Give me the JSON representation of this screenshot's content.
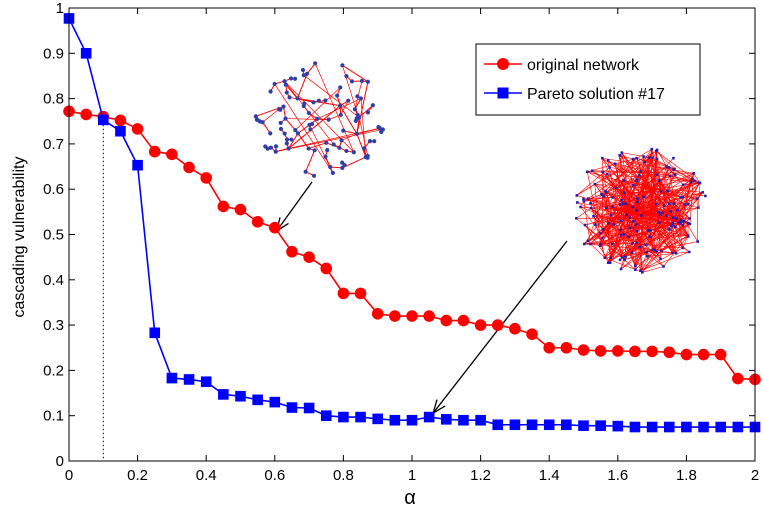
{
  "chart_data": {
    "type": "line",
    "xlabel": "α",
    "ylabel": "cascading vulnerability",
    "xlim": [
      0,
      2
    ],
    "ylim": [
      0,
      1
    ],
    "xticks": [
      0,
      0.2,
      0.4,
      0.6,
      0.8,
      1,
      1.2,
      1.4,
      1.6,
      1.8,
      2
    ],
    "yticks": [
      0,
      0.1,
      0.2,
      0.3,
      0.4,
      0.5,
      0.6,
      0.7,
      0.8,
      0.9,
      1
    ],
    "xtick_labels": [
      "0",
      "0.2",
      "0.4",
      "0.6",
      "0.8",
      "1",
      "1.2",
      "1.4",
      "1.6",
      "1.8",
      "2"
    ],
    "ytick_labels": [
      "0",
      "0.1",
      "0.2",
      "0.3",
      "0.4",
      "0.5",
      "0.6",
      "0.7",
      "0.8",
      "0.9",
      "1"
    ],
    "grid": false,
    "legend_position": "top-right",
    "reference_line_x": 0.1,
    "x": [
      0,
      0.05,
      0.1,
      0.15,
      0.2,
      0.25,
      0.3,
      0.35,
      0.4,
      0.45,
      0.5,
      0.55,
      0.6,
      0.65,
      0.7,
      0.75,
      0.8,
      0.85,
      0.9,
      0.95,
      1,
      1.05,
      1.1,
      1.15,
      1.2,
      1.25,
      1.3,
      1.35,
      1.4,
      1.45,
      1.5,
      1.55,
      1.6,
      1.65,
      1.7,
      1.75,
      1.8,
      1.85,
      1.9,
      1.95,
      2
    ],
    "series": [
      {
        "name": "original network",
        "color": "#ff0000",
        "marker": "circle",
        "values": [
          0.772,
          0.765,
          0.76,
          0.752,
          0.733,
          0.683,
          0.677,
          0.648,
          0.625,
          0.562,
          0.555,
          0.528,
          0.515,
          0.462,
          0.45,
          0.425,
          0.37,
          0.37,
          0.325,
          0.32,
          0.32,
          0.32,
          0.31,
          0.31,
          0.3,
          0.3,
          0.292,
          0.28,
          0.25,
          0.25,
          0.245,
          0.243,
          0.243,
          0.242,
          0.242,
          0.24,
          0.235,
          0.235,
          0.235,
          0.182,
          0.18
        ]
      },
      {
        "name": "Pareto solution #17",
        "color": "#0000ff",
        "marker": "square",
        "values": [
          0.977,
          0.9,
          0.753,
          0.728,
          0.653,
          0.283,
          0.183,
          0.18,
          0.175,
          0.147,
          0.143,
          0.135,
          0.13,
          0.118,
          0.117,
          0.1,
          0.097,
          0.097,
          0.093,
          0.09,
          0.09,
          0.097,
          0.092,
          0.09,
          0.09,
          0.08,
          0.08,
          0.08,
          0.08,
          0.08,
          0.078,
          0.078,
          0.077,
          0.075,
          0.075,
          0.075,
          0.075,
          0.075,
          0.075,
          0.075,
          0.075
        ]
      }
    ],
    "annotations": [
      {
        "type": "network-inset",
        "style": "sparse",
        "arrow_to": [
          0.62,
          0.51
        ]
      },
      {
        "type": "network-inset",
        "style": "dense",
        "arrow_to": [
          1.05,
          0.097
        ]
      }
    ]
  }
}
